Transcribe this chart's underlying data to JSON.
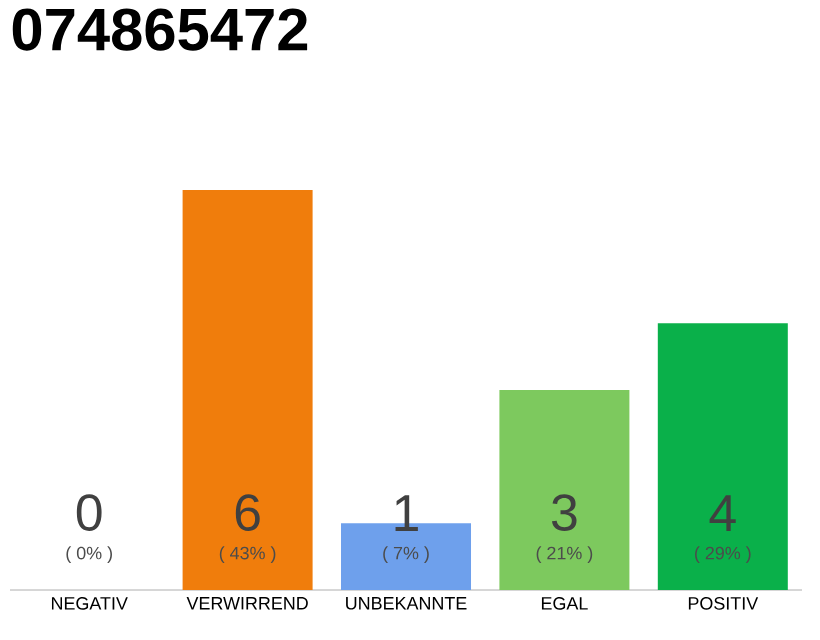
{
  "chart_data": {
    "type": "bar",
    "title": "074865472",
    "categories": [
      "NEGATIV",
      "VERWIRREND",
      "UNBEKANNTE",
      "EGAL",
      "POSITIV"
    ],
    "values": [
      0,
      6,
      1,
      3,
      4
    ],
    "colors": [
      "#bbbbbb",
      "#f07d0c",
      "#6ea0ec",
      "#7dc95e",
      "#0ab04a"
    ],
    "ylim": [
      0,
      6
    ],
    "data_labels": true,
    "annotations": [
      "( 0% )",
      "( 43% )",
      "( 7% )",
      "( 21% )",
      "( 29% )"
    ]
  }
}
